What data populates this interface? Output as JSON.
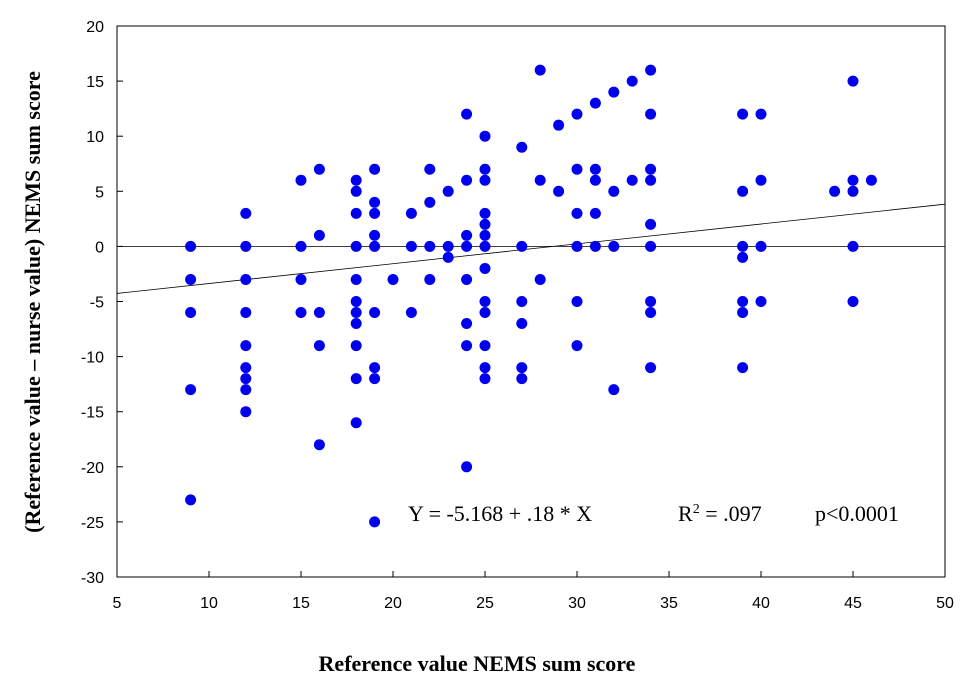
{
  "chart_data": {
    "type": "scatter",
    "title": "",
    "xlabel": "Reference value NEMS sum score",
    "ylabel": "(Reference value – nurse value) NEMS sum score",
    "xlim": [
      5,
      50
    ],
    "ylim": [
      -30,
      20
    ],
    "xticks": [
      5,
      10,
      15,
      20,
      25,
      30,
      35,
      40,
      45,
      50
    ],
    "yticks": [
      -30,
      -25,
      -20,
      -15,
      -10,
      -5,
      0,
      5,
      10,
      15,
      20
    ],
    "grid": false,
    "zero_line": true,
    "regression": {
      "intercept": -5.168,
      "slope": 0.18
    },
    "annotations": {
      "equation": "Y = -5.168 + .18 * X",
      "r2_prefix": "R",
      "r2_sup": "2",
      "r2_value": " = .097",
      "p_value": "p<0.0001"
    },
    "series": [
      {
        "color": "#0000ee",
        "points": [
          [
            9,
            0
          ],
          [
            9,
            -3
          ],
          [
            9,
            -6
          ],
          [
            9,
            -13
          ],
          [
            9,
            -23
          ],
          [
            12,
            3
          ],
          [
            12,
            0
          ],
          [
            12,
            -3
          ],
          [
            12,
            -6
          ],
          [
            12,
            -9
          ],
          [
            12,
            -11
          ],
          [
            12,
            -12
          ],
          [
            12,
            -13
          ],
          [
            12,
            -15
          ],
          [
            15,
            6
          ],
          [
            15,
            0
          ],
          [
            15,
            -3
          ],
          [
            15,
            -6
          ],
          [
            16,
            7
          ],
          [
            16,
            1
          ],
          [
            16,
            -6
          ],
          [
            16,
            -9
          ],
          [
            16,
            -18
          ],
          [
            18,
            6
          ],
          [
            18,
            5
          ],
          [
            18,
            3
          ],
          [
            18,
            0
          ],
          [
            18,
            -3
          ],
          [
            18,
            -5
          ],
          [
            18,
            -6
          ],
          [
            18,
            -7
          ],
          [
            18,
            -9
          ],
          [
            18,
            -12
          ],
          [
            18,
            -16
          ],
          [
            19,
            7
          ],
          [
            19,
            4
          ],
          [
            19,
            3
          ],
          [
            19,
            1
          ],
          [
            19,
            0
          ],
          [
            19,
            -6
          ],
          [
            19,
            -11
          ],
          [
            19,
            -12
          ],
          [
            19,
            -25
          ],
          [
            20,
            -3
          ],
          [
            21,
            3
          ],
          [
            21,
            0
          ],
          [
            21,
            -6
          ],
          [
            22,
            7
          ],
          [
            22,
            4
          ],
          [
            22,
            0
          ],
          [
            22,
            -3
          ],
          [
            23,
            5
          ],
          [
            23,
            0
          ],
          [
            23,
            -1
          ],
          [
            24,
            12
          ],
          [
            24,
            6
          ],
          [
            24,
            1
          ],
          [
            24,
            0
          ],
          [
            24,
            -3
          ],
          [
            24,
            -7
          ],
          [
            24,
            -9
          ],
          [
            24,
            -20
          ],
          [
            25,
            10
          ],
          [
            25,
            7
          ],
          [
            25,
            6
          ],
          [
            25,
            3
          ],
          [
            25,
            2
          ],
          [
            25,
            1
          ],
          [
            25,
            0
          ],
          [
            25,
            -2
          ],
          [
            25,
            -5
          ],
          [
            25,
            -6
          ],
          [
            25,
            -9
          ],
          [
            25,
            -11
          ],
          [
            25,
            -12
          ],
          [
            27,
            9
          ],
          [
            27,
            0
          ],
          [
            27,
            -5
          ],
          [
            27,
            -7
          ],
          [
            27,
            -11
          ],
          [
            27,
            -12
          ],
          [
            28,
            16
          ],
          [
            28,
            6
          ],
          [
            28,
            -3
          ],
          [
            29,
            11
          ],
          [
            29,
            5
          ],
          [
            30,
            12
          ],
          [
            30,
            7
          ],
          [
            30,
            3
          ],
          [
            30,
            0
          ],
          [
            30,
            -5
          ],
          [
            30,
            -9
          ],
          [
            31,
            13
          ],
          [
            31,
            7
          ],
          [
            31,
            6
          ],
          [
            31,
            3
          ],
          [
            31,
            0
          ],
          [
            32,
            14
          ],
          [
            32,
            5
          ],
          [
            32,
            0
          ],
          [
            32,
            -13
          ],
          [
            33,
            15
          ],
          [
            33,
            6
          ],
          [
            34,
            16
          ],
          [
            34,
            12
          ],
          [
            34,
            7
          ],
          [
            34,
            6
          ],
          [
            34,
            2
          ],
          [
            34,
            0
          ],
          [
            34,
            -5
          ],
          [
            34,
            -6
          ],
          [
            34,
            -11
          ],
          [
            39,
            12
          ],
          [
            39,
            5
          ],
          [
            39,
            0
          ],
          [
            39,
            -1
          ],
          [
            39,
            -5
          ],
          [
            39,
            -6
          ],
          [
            39,
            -11
          ],
          [
            40,
            12
          ],
          [
            40,
            6
          ],
          [
            40,
            0
          ],
          [
            40,
            -5
          ],
          [
            44,
            5
          ],
          [
            45,
            15
          ],
          [
            45,
            6
          ],
          [
            45,
            5
          ],
          [
            45,
            0
          ],
          [
            45,
            -5
          ],
          [
            46,
            6
          ]
        ]
      }
    ]
  }
}
